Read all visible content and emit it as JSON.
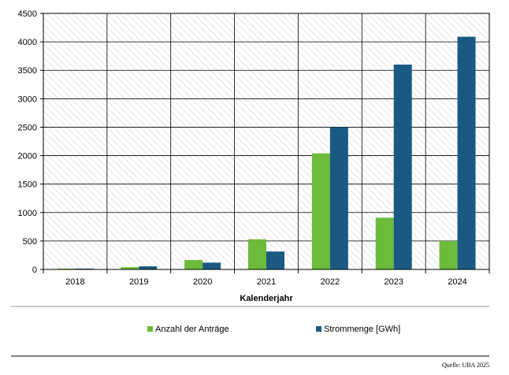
{
  "chart_data": {
    "type": "bar",
    "categories": [
      "2018",
      "2019",
      "2020",
      "2021",
      "2022",
      "2023",
      "2024"
    ],
    "series": [
      {
        "name": "Anzahl der Anträge",
        "color": "#6cbb3c",
        "values": [
          15,
          40,
          165,
          530,
          2040,
          910,
          500
        ]
      },
      {
        "name": "Strommenge [GWh]",
        "color": "#1a5a82",
        "values": [
          15,
          55,
          120,
          315,
          2500,
          3600,
          4090
        ]
      }
    ],
    "yticks": [
      0,
      500,
      1000,
      1500,
      2000,
      2500,
      3000,
      3500,
      4000,
      4500
    ],
    "ylim": [
      0,
      4500
    ],
    "xlabel": "Kalenderjahr",
    "ylabel": "",
    "grid": true,
    "legend_position": "bottom",
    "source": "Quelle: UBA 2025"
  }
}
